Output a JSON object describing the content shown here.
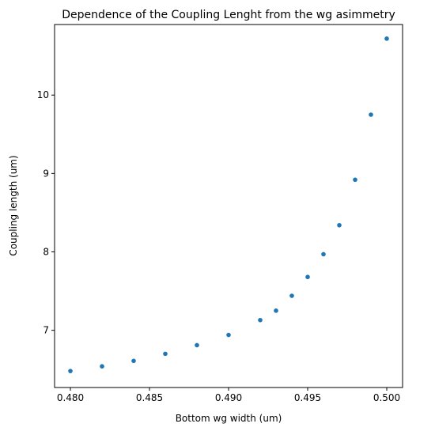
{
  "chart_data": {
    "type": "scatter",
    "title": "Dependence of the Coupling Lenght from the wg asimmetry",
    "xlabel": "Bottom wg width (um)",
    "ylabel": "Coupling length (um)",
    "xlim": [
      0.479,
      0.501
    ],
    "ylim": [
      6.27,
      10.9
    ],
    "xticks": [
      0.48,
      0.485,
      0.49,
      0.495,
      0.5
    ],
    "xtick_labels": [
      "0.480",
      "0.485",
      "0.490",
      "0.495",
      "0.500"
    ],
    "yticks": [
      7,
      8,
      9,
      10
    ],
    "ytick_labels": [
      "7",
      "8",
      "9",
      "10"
    ],
    "grid": false,
    "marker_color": "#1f77b4",
    "series": [
      {
        "x": [
          0.48,
          0.482,
          0.484,
          0.486,
          0.488,
          0.49,
          0.492,
          0.493,
          0.494,
          0.495,
          0.496,
          0.497,
          0.498,
          0.499,
          0.5
        ],
        "y": [
          6.48,
          6.54,
          6.61,
          6.7,
          6.81,
          6.94,
          7.13,
          7.25,
          7.44,
          7.68,
          7.97,
          8.34,
          8.92,
          9.75,
          10.72
        ]
      }
    ]
  }
}
